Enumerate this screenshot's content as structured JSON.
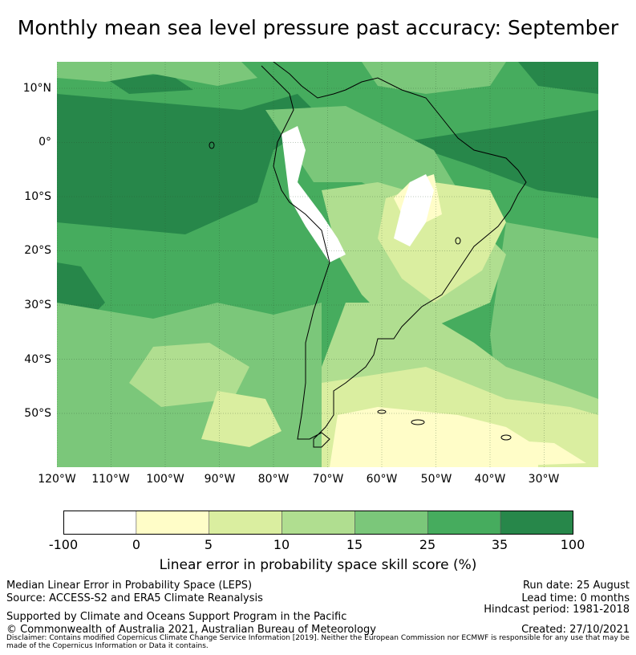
{
  "title": "Monthly mean sea level pressure past accuracy: September",
  "map": {
    "lat_ticks": [
      "10°N",
      "0°",
      "10°S",
      "20°S",
      "30°S",
      "40°S",
      "50°S"
    ],
    "lon_ticks": [
      "120°W",
      "110°W",
      "100°W",
      "90°W",
      "80°W",
      "70°W",
      "60°W",
      "50°W",
      "40°W",
      "30°W"
    ],
    "colors": {
      "c0": "#ffffff",
      "c1": "#fffdc8",
      "c2": "#daeea0",
      "c3": "#b0de90",
      "c4": "#7bc77a",
      "c5": "#46ac5e",
      "c6": "#27874a",
      "coast": "#000000",
      "grid": "#2a4a2a"
    }
  },
  "colorbar": {
    "ticks": [
      "-100",
      "0",
      "5",
      "10",
      "15",
      "25",
      "35",
      "100"
    ],
    "label": "Linear error in probability space skill score (%)"
  },
  "info": {
    "left_line1": "Median Linear Error in Probability Space (LEPS)",
    "left_line2": "Source: ACCESS-S2 and ERA5 Climate Reanalysis",
    "left_line3": "Supported by Climate and Oceans Support Program in the Pacific",
    "left_line4": "© Commonwealth of Australia 2021, Australian Bureau of Meteorology",
    "right_line1": "Run date: 25 August",
    "right_line2": "Lead time: 0 months",
    "right_line3": "Hindcast period: 1981-2018",
    "right_line4": "Created: 27/10/2021",
    "disclaimer": "Disclaimer: Contains modified Copernicus Climate Change Service Information [2019]. Neither the European Commission nor ECMWF is responsible for any use that may be made of the Copernicus Information or Data it contains."
  }
}
